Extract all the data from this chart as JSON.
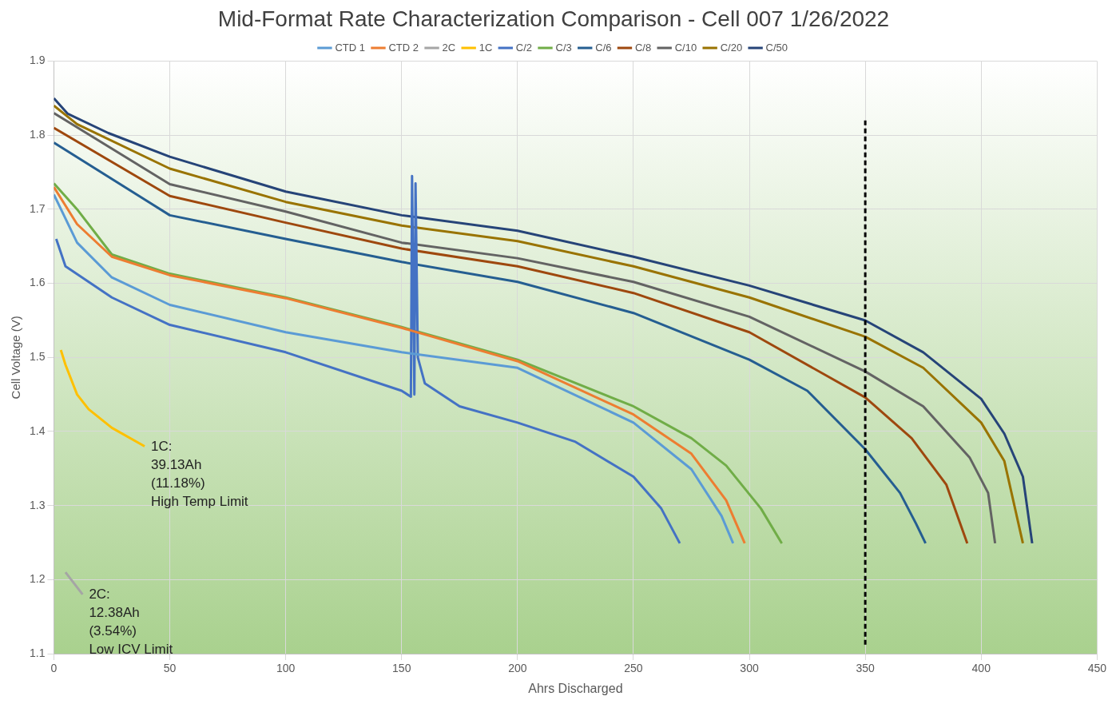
{
  "chart_data": {
    "type": "line",
    "title": "Mid-Format Rate Characterization Comparison - Cell 007 1/26/2022",
    "xlabel": "Ahrs Discharged",
    "ylabel": "Cell Voltage (V)",
    "xlim": [
      0,
      450
    ],
    "xticks": [
      0,
      50,
      100,
      150,
      200,
      250,
      300,
      350,
      400,
      450
    ],
    "ylim": [
      1.1,
      1.9
    ],
    "yticks": [
      1.1,
      1.2,
      1.3,
      1.4,
      1.5,
      1.6,
      1.7,
      1.8,
      1.9
    ],
    "grid": true,
    "legend": "top",
    "marker": "none",
    "line_style": "solid",
    "ref_lines": [
      {
        "axis": "x",
        "value": 350,
        "color": "#000000",
        "line_style": "dashed"
      }
    ],
    "annotations": [
      {
        "text": "1C:\n39.13Ah\n(11.18%)\nHigh Temp Limit",
        "x": 39.13,
        "y": 1.38
      },
      {
        "text": "2C:\n12.38Ah\n(3.54%)\nLow ICV Limit",
        "x": 12.38,
        "y": 1.18
      }
    ],
    "series": [
      {
        "name": "CTD 1",
        "color": "#5b9bd5",
        "x": [
          0,
          10,
          25,
          50,
          100,
          150,
          200,
          250,
          275,
          288,
          293
        ],
        "values": [
          1.72,
          1.655,
          1.608,
          1.571,
          1.534,
          1.507,
          1.486,
          1.412,
          1.349,
          1.286,
          1.249
        ]
      },
      {
        "name": "CTD 2",
        "color": "#ed7d31",
        "x": [
          0,
          10,
          25,
          50,
          100,
          150,
          200,
          250,
          275,
          290,
          298
        ],
        "values": [
          1.73,
          1.68,
          1.636,
          1.611,
          1.58,
          1.54,
          1.495,
          1.423,
          1.37,
          1.307,
          1.249
        ]
      },
      {
        "name": "2C",
        "color": "#a5a5a5",
        "x": [
          5,
          12.38
        ],
        "values": [
          1.21,
          1.18
        ]
      },
      {
        "name": "1C",
        "color": "#ffc000",
        "x": [
          3,
          5,
          10,
          15,
          25,
          39.13
        ],
        "values": [
          1.51,
          1.49,
          1.45,
          1.43,
          1.405,
          1.38
        ]
      },
      {
        "name": "C/2",
        "color": "#4472c4",
        "x": [
          1,
          5,
          25,
          50,
          100,
          150,
          154,
          154.5,
          155.5,
          156,
          157,
          160,
          175,
          200,
          225,
          250,
          262,
          270
        ],
        "values": [
          1.66,
          1.623,
          1.581,
          1.544,
          1.507,
          1.455,
          1.447,
          1.745,
          1.45,
          1.735,
          1.5,
          1.465,
          1.434,
          1.412,
          1.386,
          1.339,
          1.296,
          1.249
        ]
      },
      {
        "name": "C/3",
        "color": "#70ad47",
        "x": [
          0,
          10,
          25,
          50,
          100,
          150,
          200,
          250,
          275,
          290,
          305,
          314
        ],
        "values": [
          1.735,
          1.7,
          1.639,
          1.613,
          1.581,
          1.541,
          1.497,
          1.434,
          1.391,
          1.354,
          1.296,
          1.249
        ]
      },
      {
        "name": "C/6",
        "color": "#255e91",
        "x": [
          0,
          50,
          100,
          150,
          200,
          250,
          300,
          325,
          350,
          365,
          372,
          376
        ],
        "values": [
          1.79,
          1.692,
          1.66,
          1.629,
          1.602,
          1.56,
          1.497,
          1.455,
          1.376,
          1.317,
          1.275,
          1.249
        ]
      },
      {
        "name": "C/8",
        "color": "#9e480e",
        "x": [
          0,
          50,
          100,
          150,
          200,
          250,
          300,
          350,
          370,
          385,
          394
        ],
        "values": [
          1.81,
          1.718,
          1.682,
          1.647,
          1.623,
          1.587,
          1.534,
          1.446,
          1.391,
          1.328,
          1.249
        ]
      },
      {
        "name": "C/10",
        "color": "#636363",
        "x": [
          0,
          50,
          100,
          150,
          200,
          250,
          300,
          350,
          375,
          395,
          403,
          406
        ],
        "values": [
          1.83,
          1.734,
          1.697,
          1.655,
          1.634,
          1.602,
          1.555,
          1.481,
          1.434,
          1.365,
          1.317,
          1.249
        ]
      },
      {
        "name": "C/20",
        "color": "#997300",
        "x": [
          0,
          10,
          50,
          100,
          150,
          200,
          250,
          300,
          350,
          375,
          400,
          410,
          418
        ],
        "values": [
          1.84,
          1.815,
          1.755,
          1.71,
          1.678,
          1.657,
          1.623,
          1.581,
          1.528,
          1.486,
          1.412,
          1.36,
          1.249
        ]
      },
      {
        "name": "C/50",
        "color": "#264478",
        "x": [
          0,
          6,
          23.5,
          50,
          100,
          150,
          200,
          250,
          300,
          350,
          375,
          400,
          410,
          418,
          422
        ],
        "values": [
          1.85,
          1.829,
          1.803,
          1.771,
          1.724,
          1.692,
          1.671,
          1.636,
          1.597,
          1.55,
          1.507,
          1.444,
          1.397,
          1.339,
          1.249
        ]
      }
    ]
  }
}
